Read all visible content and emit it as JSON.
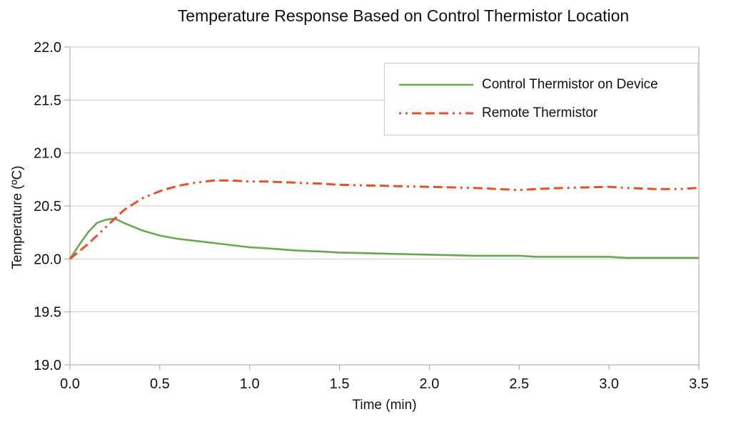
{
  "chart_data": {
    "type": "line",
    "title": "Temperature Response Based on Control Thermistor Location",
    "xlabel": "Time (min)",
    "ylabel": "Temperature (ºC)",
    "xlim": [
      0,
      3.5
    ],
    "ylim": [
      19.0,
      22.0
    ],
    "x_ticks": [
      "0.0",
      "0.5",
      "1.0",
      "1.5",
      "2.0",
      "2.5",
      "3.0",
      "3.5"
    ],
    "y_ticks": [
      "19.0",
      "19.5",
      "20.0",
      "20.5",
      "21.0",
      "21.5",
      "22.0"
    ],
    "grid": "horizontal-only",
    "legend_position": "top-right-inside",
    "colors": {
      "grid": "#cdcdcd",
      "axis": "#a0a0a0",
      "text": "#111111"
    },
    "x": [
      0,
      0.05,
      0.1,
      0.15,
      0.2,
      0.25,
      0.3,
      0.4,
      0.5,
      0.6,
      0.7,
      0.8,
      0.9,
      1.0,
      1.1,
      1.25,
      1.4,
      1.5,
      1.75,
      2.0,
      2.25,
      2.5,
      2.6,
      2.75,
      3.0,
      3.1,
      3.25,
      3.4,
      3.5
    ],
    "series": [
      {
        "id": "control-thermistor-on-device",
        "name": "Control Thermistor on Device",
        "color": "#6aa84f",
        "line_style": "solid",
        "line_width": 2.6,
        "values": [
          20.0,
          20.13,
          20.25,
          20.34,
          20.37,
          20.38,
          20.34,
          20.27,
          20.22,
          20.19,
          20.17,
          20.15,
          20.13,
          20.11,
          20.1,
          20.08,
          20.07,
          20.06,
          20.05,
          20.04,
          20.03,
          20.03,
          20.02,
          20.02,
          20.02,
          20.01,
          20.01,
          20.01,
          20.01
        ]
      },
      {
        "id": "remote-thermistor",
        "name": "Remote Thermistor",
        "color": "#ea4f28",
        "line_style": "dash-dash-dash-dot-dot",
        "line_width": 3,
        "values": [
          20.0,
          20.07,
          20.14,
          20.22,
          20.3,
          20.38,
          20.46,
          20.57,
          20.64,
          20.69,
          20.72,
          20.74,
          20.74,
          20.73,
          20.73,
          20.72,
          20.71,
          20.7,
          20.69,
          20.68,
          20.67,
          20.65,
          20.66,
          20.67,
          20.68,
          20.67,
          20.66,
          20.66,
          20.67
        ]
      }
    ]
  }
}
